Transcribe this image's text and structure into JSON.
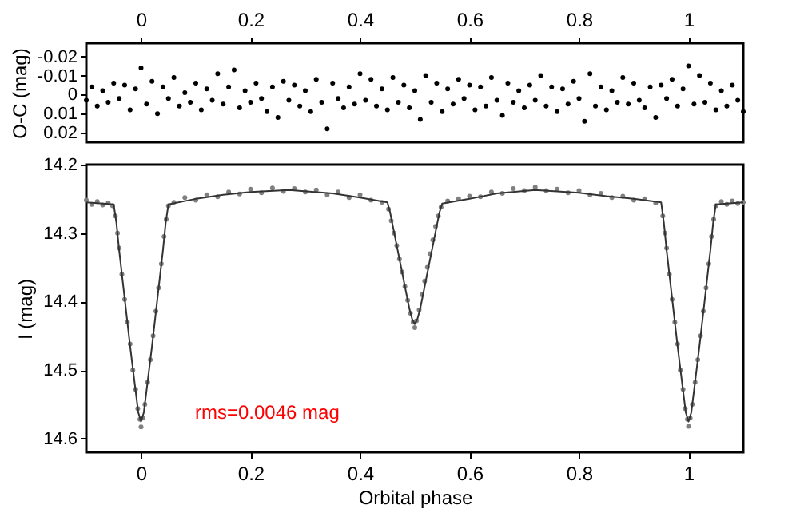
{
  "chart_data": [
    {
      "type": "scatter",
      "ylabel": "O-C (mag)",
      "xlim": [
        -0.1,
        1.1
      ],
      "xticks": [
        0,
        0.2,
        0.4,
        0.6,
        0.8,
        1
      ],
      "ylim": [
        0.025,
        -0.027
      ],
      "yticks": [
        -0.02,
        -0.01,
        0,
        0.01,
        0.02
      ],
      "marker": "circle",
      "series": [
        {
          "color": "#000000",
          "x": [
            -0.1,
            -0.09,
            -0.08,
            -0.07,
            -0.06,
            -0.05,
            -0.04,
            -0.03,
            -0.02,
            -0.01,
            0,
            0.01,
            0.02,
            0.03,
            0.04,
            0.05,
            0.06,
            0.07,
            0.08,
            0.09,
            0.1,
            0.11,
            0.12,
            0.13,
            0.14,
            0.15,
            0.16,
            0.17,
            0.18,
            0.19,
            0.2,
            0.21,
            0.22,
            0.23,
            0.24,
            0.25,
            0.26,
            0.27,
            0.28,
            0.29,
            0.3,
            0.31,
            0.32,
            0.33,
            0.34,
            0.35,
            0.36,
            0.37,
            0.38,
            0.39,
            0.4,
            0.41,
            0.42,
            0.43,
            0.44,
            0.45,
            0.46,
            0.47,
            0.48,
            0.49,
            0.5,
            0.51,
            0.52,
            0.53,
            0.54,
            0.55,
            0.56,
            0.57,
            0.58,
            0.59,
            0.6,
            0.61,
            0.62,
            0.63,
            0.64,
            0.65,
            0.66,
            0.67,
            0.68,
            0.69,
            0.7,
            0.71,
            0.72,
            0.73,
            0.74,
            0.75,
            0.76,
            0.77,
            0.78,
            0.79,
            0.8,
            0.81,
            0.82,
            0.83,
            0.84,
            0.85,
            0.86,
            0.87,
            0.88,
            0.89,
            0.9,
            0.91,
            0.92,
            0.93,
            0.94,
            0.95,
            0.96,
            0.97,
            0.98,
            0.99,
            1,
            1.01,
            1.02,
            1.03,
            1.04,
            1.05,
            1.06,
            1.07,
            1.08,
            1.09,
            1.1
          ],
          "values": [
            0.003,
            -0.004,
            0.006,
            -0.002,
            0.004,
            -0.006,
            0.002,
            -0.005,
            0.008,
            -0.003,
            -0.014,
            0.005,
            -0.007,
            0.01,
            -0.004,
            0.002,
            -0.009,
            0.006,
            -0.001,
            0.004,
            -0.006,
            0.008,
            -0.003,
            0.003,
            -0.011,
            0.005,
            -0.004,
            -0.013,
            0.007,
            -0.002,
            0.004,
            -0.006,
            0.002,
            0.009,
            -0.004,
            0.012,
            -0.007,
            0.003,
            -0.005,
            0.006,
            -0.002,
            0.009,
            -0.008,
            0.004,
            0.018,
            -0.006,
            0.002,
            0.007,
            -0.004,
            0.005,
            -0.011,
            0.003,
            -0.008,
            0.006,
            -0.003,
            0.008,
            -0.009,
            0.004,
            -0.005,
            0.007,
            -0.002,
            0.013,
            -0.01,
            0.004,
            -0.006,
            0.009,
            -0.003,
            0.005,
            -0.008,
            0.002,
            -0.005,
            0.008,
            -0.004,
            0.006,
            -0.009,
            0.003,
            0.011,
            -0.006,
            0.004,
            -0.002,
            0.007,
            -0.005,
            0.003,
            -0.01,
            0.006,
            -0.004,
            0.009,
            -0.003,
            0.005,
            -0.007,
            0.002,
            0.014,
            -0.011,
            0.006,
            -0.004,
            0.008,
            -0.002,
            0.004,
            -0.009,
            0.005,
            -0.006,
            0.003,
            0.007,
            -0.004,
            0.012,
            -0.005,
            0.002,
            -0.008,
            0.006,
            -0.003,
            -0.015,
            0.005,
            -0.01,
            0.004,
            -0.006,
            0.008,
            -0.002,
            0.006,
            -0.005,
            0.003,
            0.009
          ]
        }
      ]
    },
    {
      "type": "scatter",
      "xlabel": "Orbital phase",
      "ylabel": "I (mag)",
      "xlim": [
        -0.1,
        1.1
      ],
      "xticks": [
        0,
        0.2,
        0.4,
        0.6,
        0.8,
        1
      ],
      "ylim": [
        14.62,
        14.2
      ],
      "yticks": [
        14.2,
        14.3,
        14.4,
        14.5,
        14.6
      ],
      "annotations": [
        "rms=0.0046 mag"
      ],
      "series": [
        {
          "color": "#808080",
          "marker": "circle",
          "x": [
            -0.1,
            -0.09,
            -0.08,
            -0.07,
            -0.06,
            -0.052,
            -0.047,
            -0.043,
            -0.04,
            -0.035,
            -0.03,
            -0.025,
            -0.02,
            -0.015,
            -0.01,
            -0.006,
            -0.002,
            0,
            0.003,
            0.007,
            0.012,
            0.017,
            0.022,
            0.027,
            0.032,
            0.037,
            0.042,
            0.046,
            0.05,
            0.06,
            0.08,
            0.1,
            0.12,
            0.14,
            0.16,
            0.18,
            0.2,
            0.22,
            0.24,
            0.26,
            0.28,
            0.3,
            0.32,
            0.34,
            0.36,
            0.38,
            0.4,
            0.42,
            0.44,
            0.452,
            0.457,
            0.462,
            0.467,
            0.472,
            0.477,
            0.482,
            0.487,
            0.492,
            0.497,
            0.5,
            0.503,
            0.508,
            0.513,
            0.518,
            0.523,
            0.528,
            0.533,
            0.538,
            0.543,
            0.548,
            0.56,
            0.58,
            0.6,
            0.62,
            0.64,
            0.66,
            0.68,
            0.7,
            0.72,
            0.74,
            0.76,
            0.78,
            0.8,
            0.82,
            0.84,
            0.86,
            0.88,
            0.9,
            0.92,
            0.94,
            0.953,
            0.957,
            0.96,
            0.965,
            0.97,
            0.975,
            0.98,
            0.985,
            0.99,
            0.994,
            0.998,
            1,
            1.003,
            1.007,
            1.012,
            1.017,
            1.022,
            1.027,
            1.032,
            1.037,
            1.042,
            1.046,
            1.05,
            1.06,
            1.07,
            1.08,
            1.09,
            1.1
          ],
          "values": [
            14.252,
            14.258,
            14.254,
            14.259,
            14.256,
            14.26,
            14.275,
            14.3,
            14.322,
            14.36,
            14.397,
            14.43,
            14.462,
            14.5,
            14.528,
            14.556,
            14.572,
            14.583,
            14.57,
            14.55,
            14.518,
            14.485,
            14.45,
            14.414,
            14.38,
            14.345,
            14.305,
            14.28,
            14.26,
            14.255,
            14.248,
            14.252,
            14.244,
            14.247,
            14.24,
            14.243,
            14.236,
            14.241,
            14.234,
            14.239,
            14.235,
            14.24,
            14.237,
            14.244,
            14.24,
            14.248,
            14.244,
            14.252,
            14.255,
            14.265,
            14.282,
            14.3,
            14.318,
            14.338,
            14.357,
            14.378,
            14.398,
            14.417,
            14.43,
            14.438,
            14.428,
            14.412,
            14.39,
            14.37,
            14.35,
            14.33,
            14.31,
            14.29,
            14.275,
            14.262,
            14.253,
            14.25,
            14.246,
            14.247,
            14.24,
            14.242,
            14.235,
            14.238,
            14.233,
            14.238,
            14.236,
            14.241,
            14.238,
            14.244,
            14.242,
            14.248,
            14.246,
            14.252,
            14.25,
            14.256,
            14.275,
            14.3,
            14.322,
            14.36,
            14.397,
            14.43,
            14.462,
            14.5,
            14.528,
            14.556,
            14.572,
            14.582,
            14.57,
            14.55,
            14.518,
            14.485,
            14.45,
            14.414,
            14.38,
            14.345,
            14.305,
            14.28,
            14.26,
            14.254,
            14.258,
            14.253,
            14.257,
            14.255
          ]
        },
        {
          "type": "line",
          "color": "#333333",
          "marker": "none",
          "x": [
            -0.1,
            -0.05,
            -0.045,
            -0.04,
            -0.03,
            -0.02,
            -0.01,
            -0.005,
            0,
            0.005,
            0.01,
            0.02,
            0.03,
            0.04,
            0.045,
            0.05,
            0.1,
            0.15,
            0.2,
            0.27,
            0.35,
            0.4,
            0.45,
            0.455,
            0.46,
            0.47,
            0.48,
            0.49,
            0.495,
            0.5,
            0.505,
            0.51,
            0.52,
            0.53,
            0.54,
            0.545,
            0.55,
            0.6,
            0.65,
            0.72,
            0.8,
            0.85,
            0.9,
            0.95,
            0.955,
            0.96,
            0.97,
            0.98,
            0.99,
            0.995,
            1,
            1.005,
            1.01,
            1.02,
            1.03,
            1.04,
            1.045,
            1.05,
            1.1
          ],
          "values": [
            14.255,
            14.258,
            14.285,
            14.325,
            14.395,
            14.465,
            14.53,
            14.562,
            14.575,
            14.562,
            14.53,
            14.465,
            14.395,
            14.325,
            14.285,
            14.258,
            14.25,
            14.244,
            14.24,
            14.237,
            14.242,
            14.248,
            14.255,
            14.27,
            14.29,
            14.33,
            14.37,
            14.41,
            14.425,
            14.433,
            14.425,
            14.41,
            14.37,
            14.33,
            14.29,
            14.27,
            14.257,
            14.25,
            14.242,
            14.237,
            14.241,
            14.246,
            14.25,
            14.255,
            14.285,
            14.325,
            14.395,
            14.465,
            14.53,
            14.562,
            14.575,
            14.562,
            14.53,
            14.465,
            14.395,
            14.325,
            14.285,
            14.258,
            14.255
          ]
        }
      ]
    }
  ]
}
